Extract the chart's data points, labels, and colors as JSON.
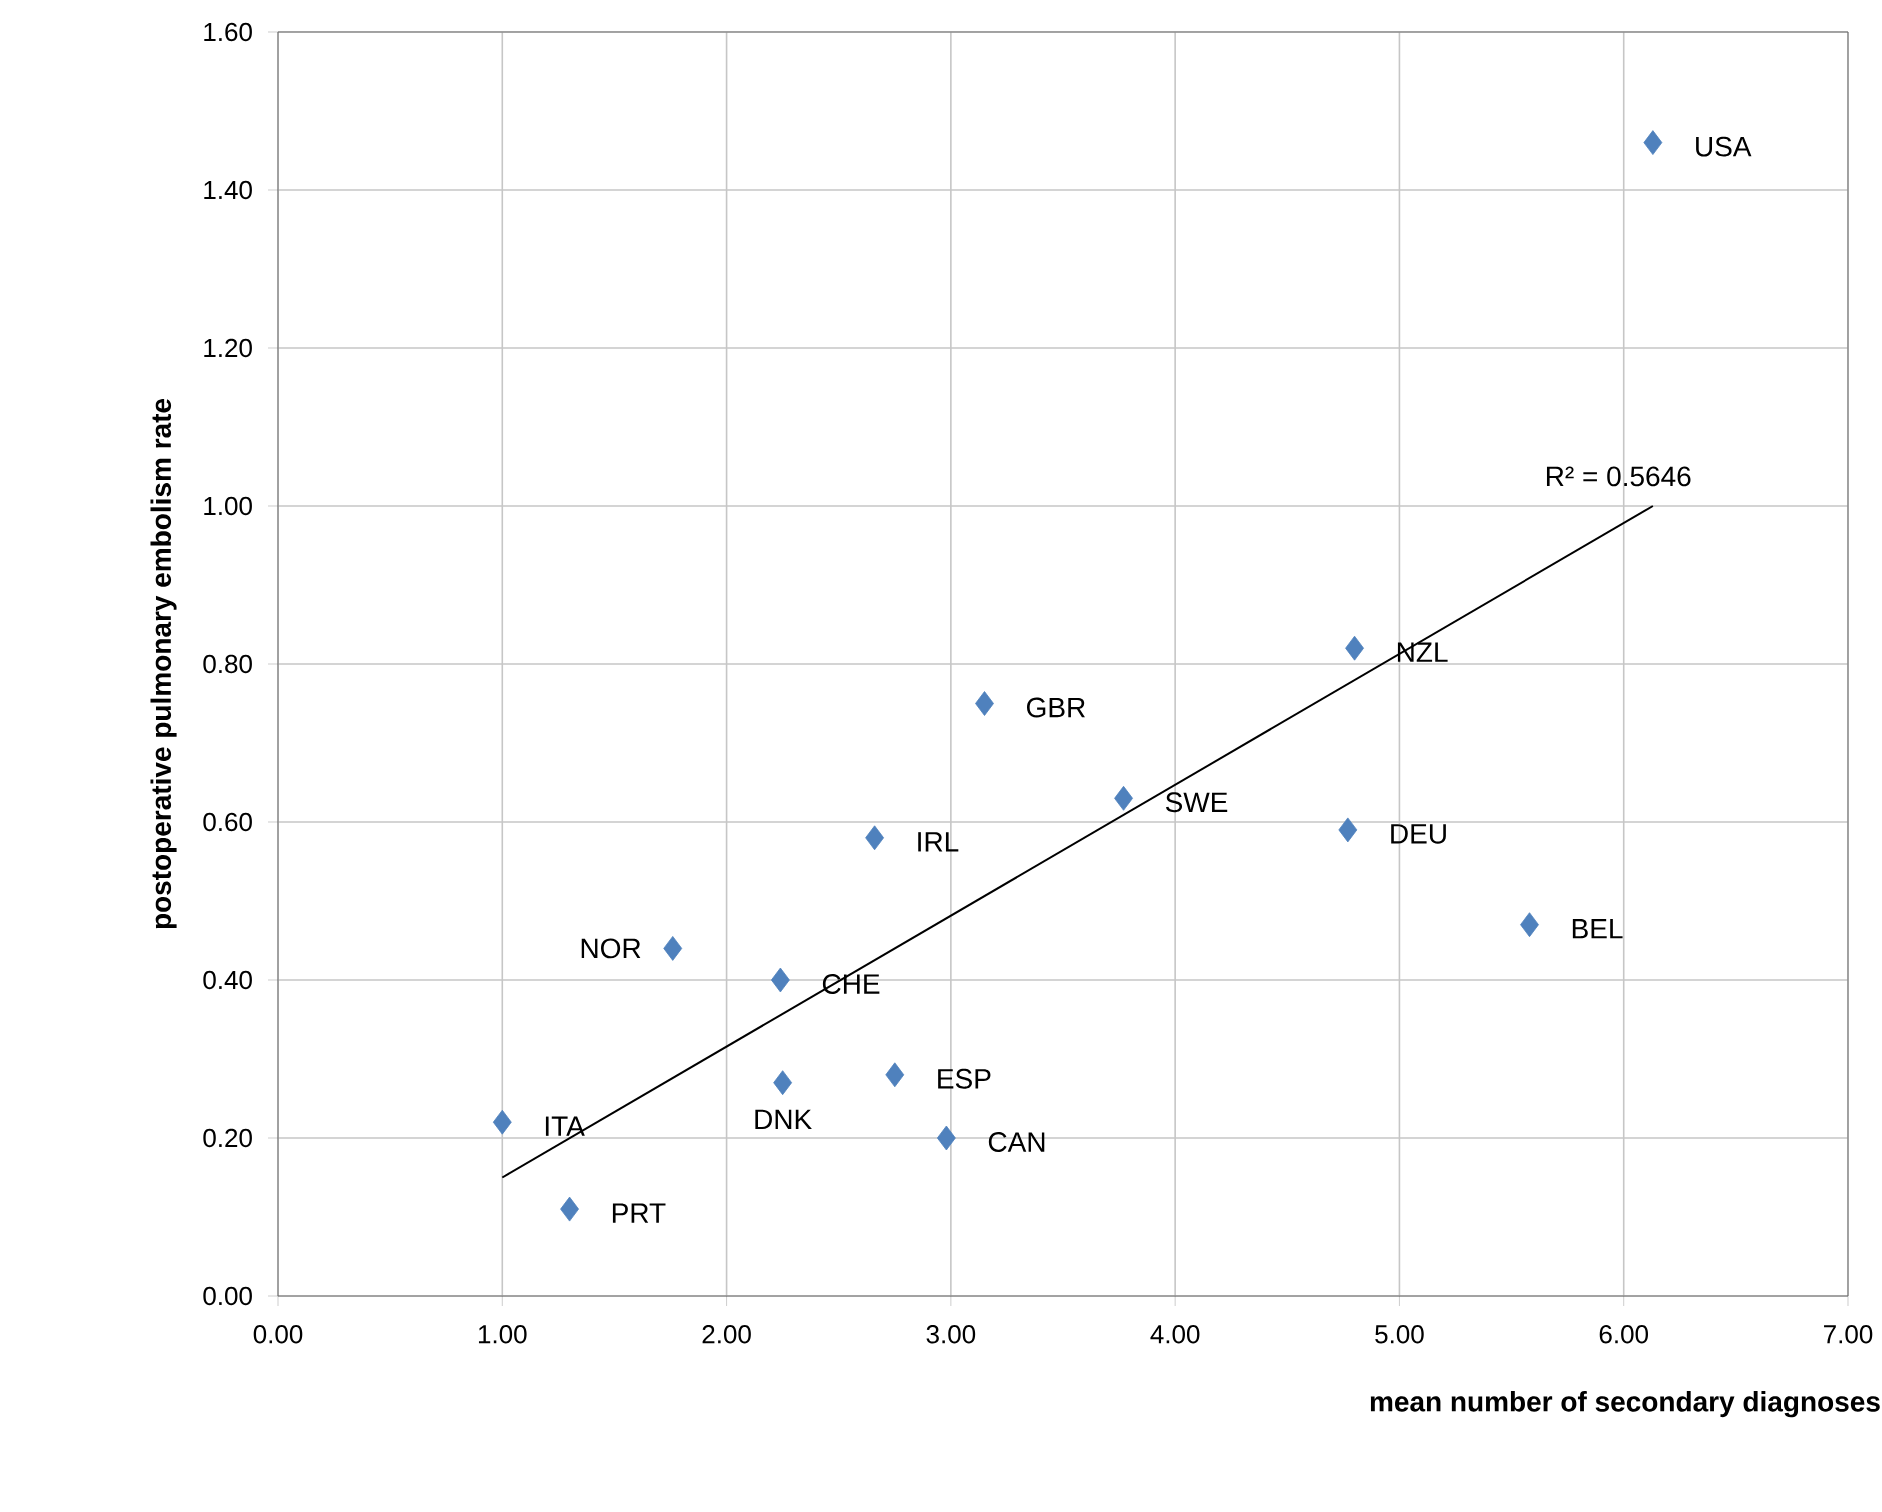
{
  "chart_data": {
    "type": "scatter",
    "xlabel": "mean number of secondary diagnoses",
    "ylabel": "postoperative pulmonary embolism rate",
    "xlim": [
      0,
      7
    ],
    "ylim": [
      0,
      1.6
    ],
    "xticks": [
      {
        "value": 0,
        "label": "0.00"
      },
      {
        "value": 1,
        "label": "1.00"
      },
      {
        "value": 2,
        "label": "2.00"
      },
      {
        "value": 3,
        "label": "3.00"
      },
      {
        "value": 4,
        "label": "4.00"
      },
      {
        "value": 5,
        "label": "5.00"
      },
      {
        "value": 6,
        "label": "6.00"
      },
      {
        "value": 7,
        "label": "7.00"
      }
    ],
    "yticks": [
      {
        "value": 0,
        "label": "0.00"
      },
      {
        "value": 0.2,
        "label": "0.20"
      },
      {
        "value": 0.4,
        "label": "0.40"
      },
      {
        "value": 0.6,
        "label": "0.60"
      },
      {
        "value": 0.8,
        "label": "0.80"
      },
      {
        "value": 1.0,
        "label": "1.00"
      },
      {
        "value": 1.2,
        "label": "1.20"
      },
      {
        "value": 1.4,
        "label": "1.40"
      },
      {
        "value": 1.6,
        "label": "1.60"
      }
    ],
    "grid": true,
    "marker": "diamond",
    "series": [
      {
        "color": "#4f81bd",
        "x": [
          6.13,
          4.8,
          3.15,
          3.77,
          4.77,
          5.58,
          2.66,
          1.76,
          2.24,
          2.75,
          2.25,
          2.98,
          1.0,
          1.3
        ],
        "values": [
          1.46,
          0.82,
          0.75,
          0.63,
          0.59,
          0.47,
          0.58,
          0.44,
          0.4,
          0.28,
          0.27,
          0.2,
          0.22,
          0.11
        ]
      },
      {
        "type": "line",
        "color": "#000000",
        "marker": "none",
        "x": [
          1.0,
          6.13
        ],
        "values": [
          0.15,
          1.0
        ]
      }
    ],
    "annotations": [
      {
        "text": "USA",
        "x": 6.13,
        "y": 1.46
      },
      {
        "text": "NZL",
        "x": 4.8,
        "y": 0.82
      },
      {
        "text": "GBR",
        "x": 3.15,
        "y": 0.75
      },
      {
        "text": "SWE",
        "x": 3.77,
        "y": 0.63
      },
      {
        "text": "DEU",
        "x": 4.77,
        "y": 0.59
      },
      {
        "text": "BEL",
        "x": 5.58,
        "y": 0.47
      },
      {
        "text": "IRL",
        "x": 2.66,
        "y": 0.58
      },
      {
        "text": "NOR",
        "x": 1.76,
        "y": 0.44
      },
      {
        "text": "CHE",
        "x": 2.24,
        "y": 0.4
      },
      {
        "text": "ESP",
        "x": 2.75,
        "y": 0.28
      },
      {
        "text": "DNK",
        "x": 2.25,
        "y": 0.27
      },
      {
        "text": "CAN",
        "x": 2.98,
        "y": 0.2
      },
      {
        "text": "ITA",
        "x": 1.0,
        "y": 0.22
      },
      {
        "text": "PRT",
        "x": 1.3,
        "y": 0.11
      },
      "R² = 0.5646"
    ]
  }
}
